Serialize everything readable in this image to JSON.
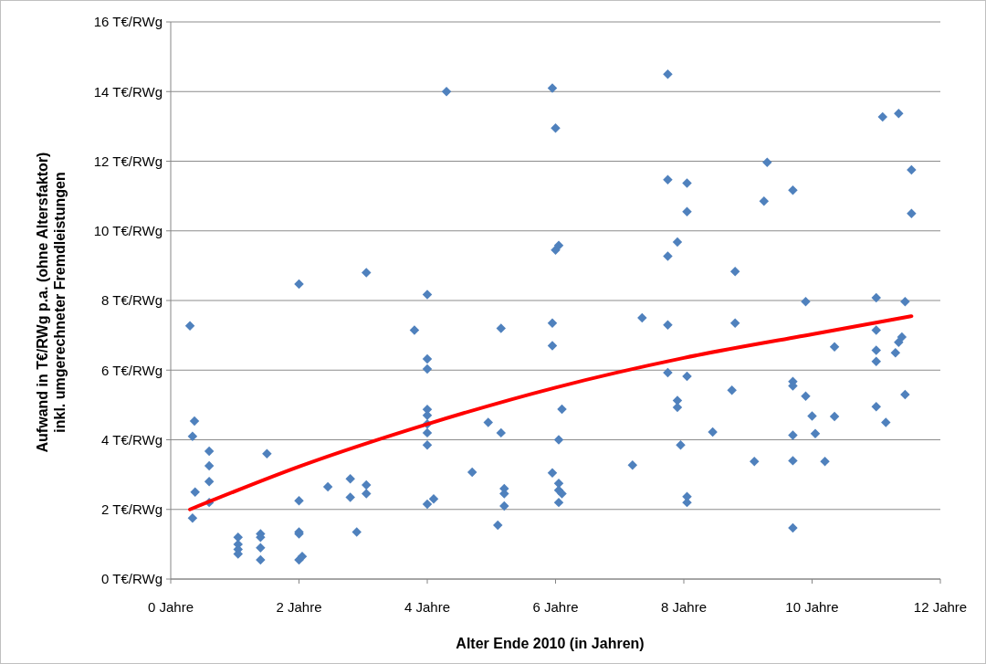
{
  "chart_data": {
    "type": "scatter",
    "xlabel": "Alter Ende 2010 (in Jahren)",
    "ylabel": "Aufwand in T€/RWg p.a. (ohne Altersfaktor)\ninkl. umgerechneter Fremdleistungen",
    "xlim": [
      0,
      12
    ],
    "xticks": [
      {
        "value": 0,
        "label": "0 Jahre"
      },
      {
        "value": 2,
        "label": "2 Jahre"
      },
      {
        "value": 4,
        "label": "4 Jahre"
      },
      {
        "value": 6,
        "label": "6 Jahre"
      },
      {
        "value": 8,
        "label": "8 Jahre"
      },
      {
        "value": 10,
        "label": "10 Jahre"
      },
      {
        "value": 12,
        "label": "12 Jahre"
      }
    ],
    "ylim": [
      0,
      16
    ],
    "yticks": [
      {
        "value": 0,
        "label": "0 T€/RWg"
      },
      {
        "value": 2,
        "label": "2 T€/RWg"
      },
      {
        "value": 4,
        "label": "4 T€/RWg"
      },
      {
        "value": 6,
        "label": "6 T€/RWg"
      },
      {
        "value": 8,
        "label": "8 T€/RWg"
      },
      {
        "value": 10,
        "label": "10 T€/RWg"
      },
      {
        "value": 12,
        "label": "12 T€/RWg"
      },
      {
        "value": 14,
        "label": "14 T€/RWg"
      },
      {
        "value": 16,
        "label": "16 T€/RWg"
      }
    ],
    "grid": "y",
    "series": [
      {
        "color": "#4f81bd",
        "marker": "diamond",
        "x": [
          0.3,
          0.34,
          0.37,
          0.38,
          0.34,
          0.6,
          0.6,
          0.6,
          0.6,
          1.05,
          1.05,
          1.05,
          1.05,
          1.4,
          1.4,
          1.4,
          1.4,
          1.5,
          2.0,
          2.0,
          2.0,
          2.0,
          2.0,
          2.05,
          2.45,
          2.8,
          2.8,
          2.9,
          3.05,
          3.05,
          3.05,
          3.8,
          4.0,
          4.0,
          4.0,
          4.0,
          4.0,
          4.0,
          4.0,
          4.0,
          4.0,
          4.1,
          4.3,
          4.7,
          4.95,
          5.1,
          5.15,
          5.15,
          5.2,
          5.2,
          5.2,
          5.95,
          6.0,
          6.0,
          6.05,
          5.95,
          5.95,
          6.05,
          5.95,
          6.05,
          6.05,
          6.1,
          6.05,
          6.1,
          7.2,
          7.35,
          7.75,
          7.75,
          8.05,
          8.05,
          7.9,
          7.75,
          7.75,
          7.75,
          8.05,
          7.9,
          7.9,
          7.95,
          8.05,
          8.05,
          8.45,
          8.8,
          8.8,
          8.75,
          9.1,
          9.3,
          9.25,
          9.7,
          9.7,
          9.7,
          9.7,
          9.7,
          9.7,
          9.9,
          9.9,
          10.0,
          10.05,
          10.2,
          10.35,
          10.35,
          11.0,
          11.0,
          11.0,
          11.0,
          11.0,
          11.15,
          11.1,
          11.35,
          11.3,
          11.35,
          11.4,
          11.45,
          11.45,
          11.55,
          11.55
        ],
        "values": [
          7.27,
          4.1,
          4.54,
          2.5,
          1.75,
          3.67,
          3.25,
          2.8,
          2.2,
          1.2,
          1.0,
          0.85,
          0.72,
          1.3,
          1.2,
          0.9,
          0.55,
          3.6,
          8.47,
          2.25,
          1.35,
          1.3,
          0.55,
          0.65,
          2.65,
          2.88,
          2.35,
          1.35,
          8.8,
          2.7,
          2.45,
          7.15,
          8.17,
          6.32,
          6.03,
          4.87,
          4.7,
          4.2,
          3.85,
          2.15,
          4.45,
          2.3,
          14.0,
          3.07,
          4.5,
          1.55,
          4.2,
          7.2,
          2.6,
          2.45,
          2.1,
          14.1,
          12.95,
          9.45,
          9.58,
          7.35,
          6.7,
          4.0,
          3.05,
          2.75,
          2.55,
          2.45,
          2.2,
          4.88,
          3.27,
          7.5,
          14.5,
          11.47,
          11.37,
          10.55,
          9.68,
          9.27,
          7.3,
          5.93,
          5.82,
          5.13,
          4.93,
          3.85,
          2.37,
          2.2,
          4.22,
          8.83,
          7.35,
          5.42,
          3.38,
          11.97,
          10.85,
          11.17,
          5.67,
          5.55,
          4.13,
          3.4,
          1.47,
          7.97,
          5.25,
          4.68,
          4.18,
          3.38,
          6.67,
          4.67,
          8.08,
          7.15,
          6.57,
          6.25,
          4.95,
          4.5,
          13.27,
          13.37,
          6.5,
          6.8,
          6.95,
          7.97,
          5.3,
          11.75,
          10.5
        ]
      },
      {
        "type": "line",
        "color": "#ff0000",
        "marker": "none",
        "line_style": "solid",
        "x": [
          0.3,
          2,
          4,
          6,
          8,
          10,
          11.55
        ],
        "values": [
          2.0,
          3.23,
          4.45,
          5.5,
          6.35,
          7.03,
          7.55
        ]
      }
    ]
  }
}
